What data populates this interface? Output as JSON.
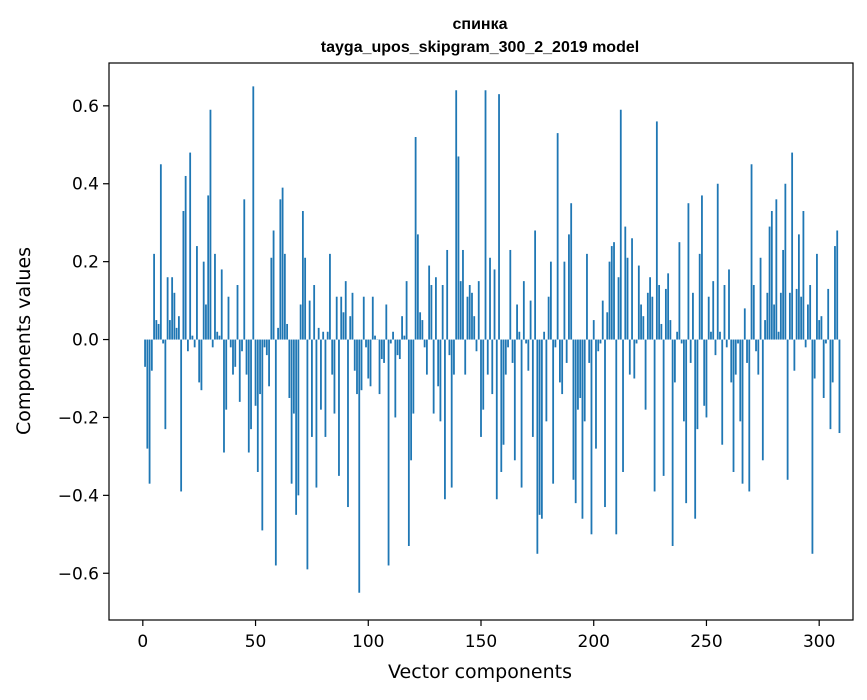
{
  "chart_data": {
    "type": "bar",
    "title": "спинка",
    "subtitle": "tayga_upos_skipgram_300_2_2019 model",
    "xlabel": "Vector components",
    "ylabel": "Components values",
    "xlim": [
      -15,
      315
    ],
    "ylim": [
      -0.72,
      0.71
    ],
    "xticks": [
      0,
      50,
      100,
      150,
      200,
      250,
      300
    ],
    "yticks": [
      -0.6,
      -0.4,
      -0.2,
      0.0,
      0.2,
      0.4,
      0.6
    ],
    "ytick_labels": [
      "−0.6",
      "−0.4",
      "−0.2",
      "0.0",
      "0.2",
      "0.4",
      "0.6"
    ],
    "grid": false,
    "color": "#1f77b4",
    "x_start": 1,
    "values": [
      -0.07,
      -0.28,
      -0.37,
      -0.08,
      0.22,
      0.05,
      0.04,
      0.45,
      -0.01,
      -0.23,
      0.16,
      0.05,
      0.16,
      0.12,
      0.03,
      0.06,
      -0.39,
      0.33,
      0.42,
      -0.03,
      0.48,
      0.01,
      -0.02,
      0.24,
      -0.11,
      -0.13,
      0.2,
      0.09,
      0.37,
      0.59,
      -0.02,
      0.22,
      0.02,
      0.01,
      0.18,
      -0.29,
      -0.18,
      0.11,
      -0.02,
      -0.09,
      -0.07,
      0.14,
      -0.16,
      -0.03,
      0.36,
      -0.09,
      -0.29,
      -0.23,
      0.65,
      -0.17,
      -0.34,
      -0.14,
      -0.49,
      -0.02,
      -0.04,
      -0.12,
      0.21,
      0.28,
      -0.58,
      0.03,
      0.36,
      0.39,
      0.22,
      0.04,
      -0.15,
      -0.37,
      -0.19,
      -0.45,
      -0.4,
      0.09,
      0.33,
      0.21,
      -0.59,
      0.1,
      -0.25,
      0.14,
      -0.38,
      0.03,
      -0.18,
      0.02,
      -0.25,
      0.02,
      0.22,
      -0.09,
      -0.19,
      0.11,
      -0.35,
      0.11,
      0.07,
      0.15,
      -0.43,
      0.06,
      0.12,
      -0.08,
      -0.14,
      -0.65,
      -0.13,
      0.11,
      -0.02,
      -0.1,
      -0.12,
      0.11,
      0.01,
      0.0,
      -0.14,
      -0.05,
      -0.06,
      0.09,
      -0.58,
      -0.01,
      0.02,
      -0.2,
      -0.04,
      -0.05,
      0.06,
      0.01,
      0.15,
      -0.53,
      -0.31,
      -0.19,
      0.52,
      0.27,
      0.07,
      0.05,
      -0.02,
      -0.09,
      0.19,
      0.14,
      -0.19,
      0.16,
      -0.12,
      -0.21,
      0.14,
      -0.41,
      0.23,
      -0.04,
      -0.38,
      -0.09,
      0.64,
      0.47,
      0.15,
      0.23,
      -0.09,
      0.11,
      0.14,
      0.12,
      0.06,
      -0.03,
      0.15,
      -0.25,
      -0.18,
      0.64,
      -0.09,
      0.21,
      -0.14,
      0.18,
      -0.41,
      0.63,
      -0.34,
      -0.27,
      -0.09,
      -0.02,
      0.23,
      -0.06,
      -0.31,
      0.09,
      0.02,
      -0.38,
      0.15,
      -0.01,
      -0.08,
      0.1,
      -0.25,
      0.28,
      -0.55,
      -0.45,
      -0.46,
      0.02,
      -0.21,
      0.11,
      0.2,
      -0.37,
      -0.02,
      0.53,
      -0.11,
      -0.14,
      0.2,
      -0.06,
      0.27,
      0.35,
      -0.36,
      -0.42,
      -0.18,
      -0.15,
      -0.46,
      -0.21,
      0.22,
      -0.06,
      -0.5,
      0.05,
      -0.28,
      -0.03,
      -0.01,
      0.1,
      -0.43,
      0.07,
      0.2,
      0.24,
      0.25,
      -0.5,
      0.16,
      0.59,
      -0.34,
      0.29,
      0.21,
      -0.09,
      0.26,
      -0.1,
      -0.01,
      0.19,
      0.09,
      0.06,
      -0.18,
      0.12,
      0.16,
      0.11,
      -0.39,
      0.56,
      0.14,
      0.04,
      -0.35,
      0.13,
      0.17,
      0.05,
      -0.53,
      -0.11,
      0.02,
      0.25,
      -0.01,
      -0.21,
      -0.42,
      0.35,
      -0.06,
      0.12,
      -0.46,
      -0.23,
      0.22,
      0.37,
      -0.17,
      -0.2,
      0.11,
      0.02,
      0.15,
      -0.04,
      0.4,
      0.02,
      -0.27,
      0.14,
      -0.02,
      0.18,
      -0.11,
      -0.34,
      -0.09,
      -0.01,
      -0.21,
      -0.37,
      0.08,
      -0.06,
      -0.39,
      0.45,
      0.14,
      -0.03,
      -0.09,
      0.21,
      -0.31,
      0.05,
      0.12,
      0.29,
      0.33,
      0.09,
      0.36,
      0.02,
      0.12,
      0.23,
      0.4,
      -0.36,
      0.12,
      0.48,
      -0.08,
      0.13,
      0.27,
      0.11,
      0.33,
      -0.02,
      0.09,
      0.14,
      -0.55,
      -0.1,
      0.22,
      0.05,
      0.06,
      -0.15,
      -0.01,
      0.13,
      -0.23,
      -0.11,
      0.24,
      0.28,
      -0.24
    ]
  }
}
